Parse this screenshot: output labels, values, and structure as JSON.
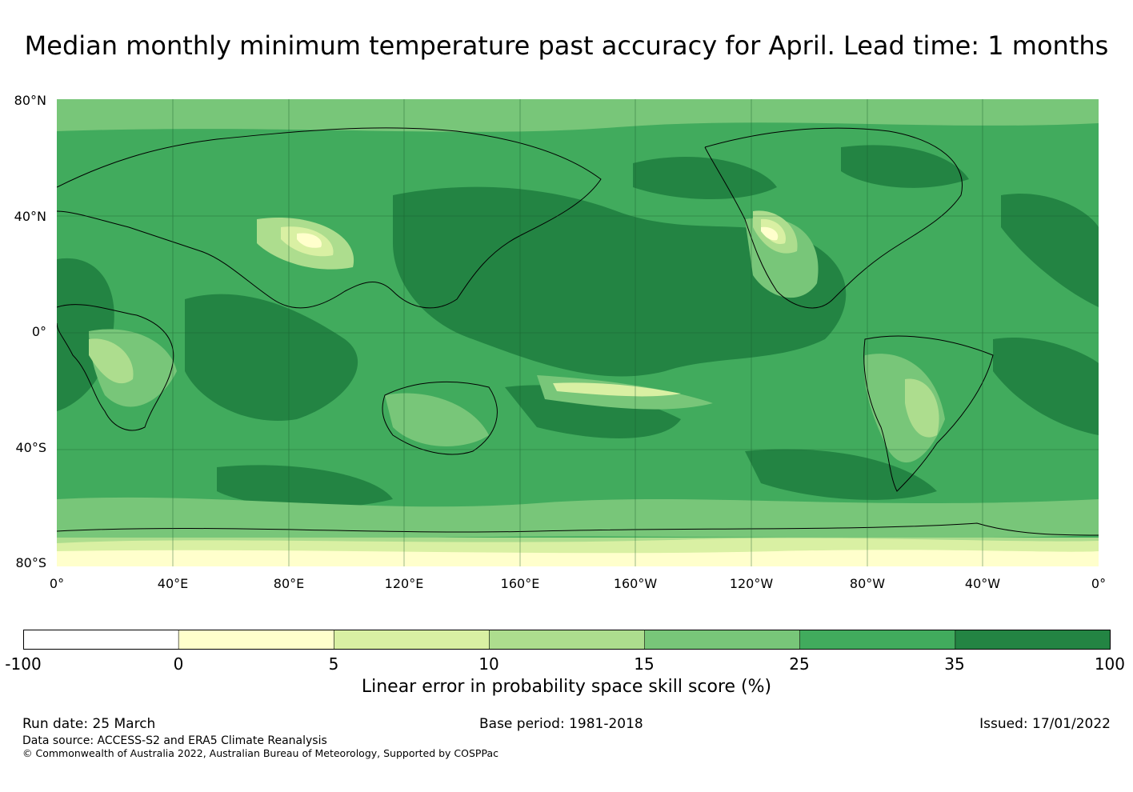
{
  "title": "Median monthly minimum temperature past accuracy for April. Lead time: 1 months",
  "map": {
    "lat_labels": [
      "80°N",
      "40°N",
      "0°",
      "40°S",
      "80°S"
    ],
    "lon_labels": [
      "0°",
      "40°E",
      "80°E",
      "120°E",
      "160°E",
      "160°W",
      "120°W",
      "80°W",
      "40°W",
      "0°"
    ],
    "ocean_dominant_color": "#238443",
    "coastline_color": "#000000"
  },
  "colorbar": {
    "ticks": [
      "-100",
      "0",
      "5",
      "10",
      "15",
      "25",
      "35",
      "100"
    ],
    "colors": [
      "#ffffff",
      "#ffffcc",
      "#d9f0a3",
      "#addd8e",
      "#78c679",
      "#41ab5d",
      "#238443"
    ],
    "label": "Linear error in probability space skill score (%)"
  },
  "footer": {
    "run_date": "Run date: 25 March",
    "base_period": "Base period: 1981-2018",
    "issued": "Issued: 17/01/2022",
    "data_source": "Data source: ACCESS-S2 and ERA5 Climate Reanalysis",
    "copyright": "© Commonwealth of Australia 2022, Australian Bureau of Meteorology, Supported by COSPPac"
  }
}
